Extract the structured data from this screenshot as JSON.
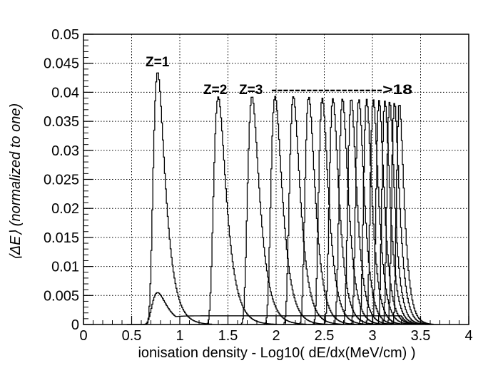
{
  "chart_data": {
    "type": "line",
    "title": "",
    "xlabel": "ionisation density - Log10( dE/dx(MeV/cm) )",
    "ylabel": "⟨ΔE⟩ (normalized to one)",
    "xlim": [
      0,
      4
    ],
    "ylim": [
      0,
      0.05
    ],
    "grid": true,
    "x_ticks": [
      "0",
      "0.5",
      "1",
      "1.5",
      "2",
      "2.5",
      "3",
      "3.5",
      "4"
    ],
    "y_ticks": [
      "0",
      "0.005",
      "0.01",
      "0.015",
      "0.02",
      "0.025",
      "0.03",
      "0.035",
      "0.04",
      "0.045",
      "0.05"
    ],
    "annotations": [
      "Z=1",
      "Z=2",
      "Z=3",
      "------------------->18"
    ],
    "series": [
      {
        "peak_x": 0.77,
        "peak_y": 0.0435,
        "width": 0.04
      },
      {
        "peak_x": 1.4,
        "peak_y": 0.0392,
        "width": 0.042
      },
      {
        "peak_x": 1.75,
        "peak_y": 0.0393,
        "width": 0.04
      },
      {
        "peak_x": 1.99,
        "peak_y": 0.0393,
        "width": 0.038
      },
      {
        "peak_x": 2.18,
        "peak_y": 0.0393,
        "width": 0.036
      },
      {
        "peak_x": 2.34,
        "peak_y": 0.0392,
        "width": 0.034
      },
      {
        "peak_x": 2.48,
        "peak_y": 0.039,
        "width": 0.033
      },
      {
        "peak_x": 2.59,
        "peak_y": 0.0389,
        "width": 0.032
      },
      {
        "peak_x": 2.69,
        "peak_y": 0.0389,
        "width": 0.031
      },
      {
        "peak_x": 2.78,
        "peak_y": 0.0389,
        "width": 0.03
      },
      {
        "peak_x": 2.86,
        "peak_y": 0.0388,
        "width": 0.029
      },
      {
        "peak_x": 2.94,
        "peak_y": 0.0388,
        "width": 0.028
      },
      {
        "peak_x": 3.01,
        "peak_y": 0.0387,
        "width": 0.028
      },
      {
        "peak_x": 3.07,
        "peak_y": 0.0386,
        "width": 0.027
      },
      {
        "peak_x": 3.13,
        "peak_y": 0.0385,
        "width": 0.027
      },
      {
        "peak_x": 3.18,
        "peak_y": 0.0384,
        "width": 0.026
      },
      {
        "peak_x": 3.23,
        "peak_y": 0.0382,
        "width": 0.026
      },
      {
        "peak_x": 3.28,
        "peak_y": 0.0381,
        "width": 0.025
      }
    ],
    "low_series": {
      "peak_x": 0.77,
      "peak_y": 0.0055,
      "tail_y": 0.0015,
      "tail_end_x": 3.5
    }
  }
}
